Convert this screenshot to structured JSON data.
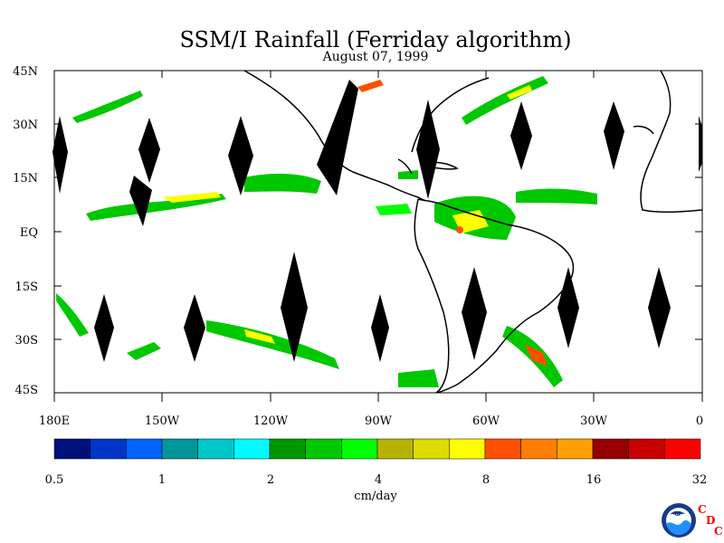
{
  "map": {
    "title": "SSM/I Rainfall (Ferriday algorithm)",
    "subtitle": "August 07, 1999",
    "lat_labels": [
      "45N",
      "30N",
      "15N",
      "EQ",
      "15S",
      "30S",
      "45S"
    ],
    "lon_labels": [
      "180E",
      "150W",
      "120W",
      "90W",
      "60W",
      "30W",
      "0"
    ],
    "colorbar": {
      "colors": [
        "#00107a",
        "#0036c8",
        "#0064ff",
        "#00969a",
        "#00c8c8",
        "#00faff",
        "#009600",
        "#00c800",
        "#00ff00",
        "#b4b400",
        "#dcdc00",
        "#ffff00",
        "#ff5000",
        "#ff7d00",
        "#ffa000",
        "#960000",
        "#c80000",
        "#ff0000"
      ],
      "labels": [
        "0.5",
        "1",
        "2",
        "4",
        "8",
        "16",
        "32"
      ],
      "units": "cm/day"
    },
    "logo": {
      "name": "NOAA",
      "cdc": [
        "C",
        "D",
        "C"
      ]
    }
  }
}
